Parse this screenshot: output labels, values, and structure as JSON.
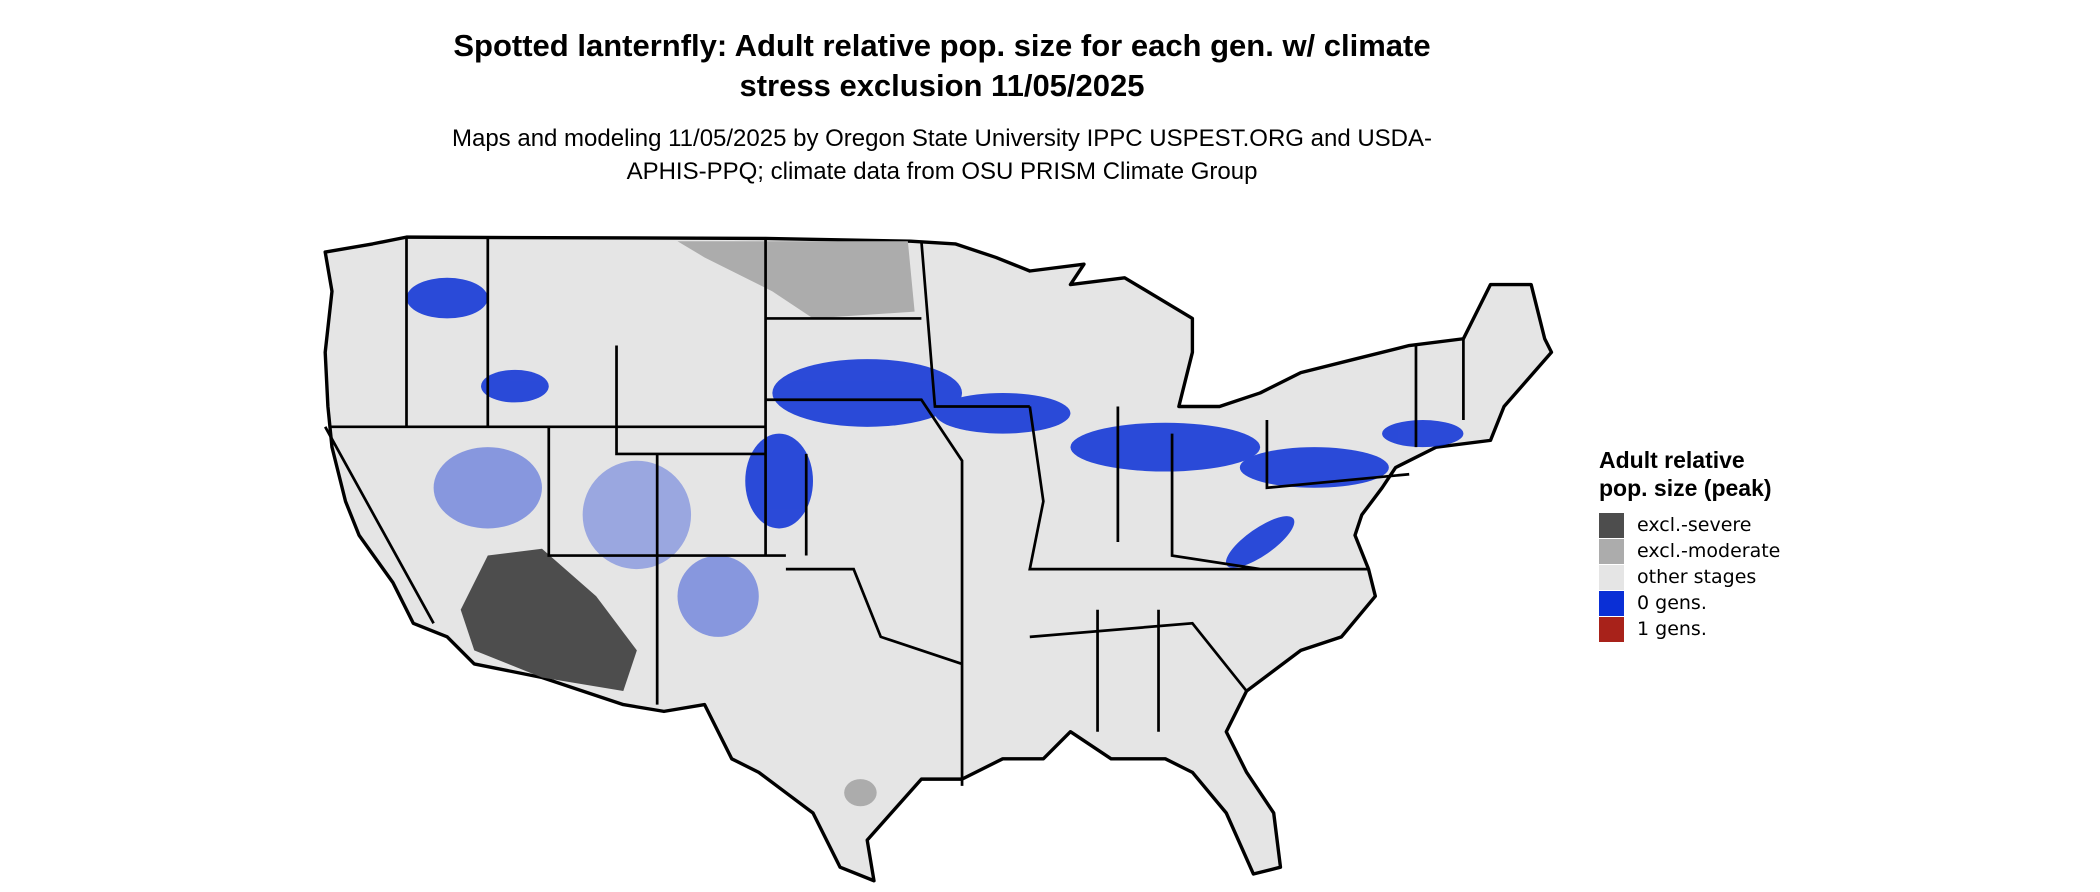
{
  "title": "Spotted lanternfly: Adult relative pop. size for each gen. w/ climate stress exclusion 11/05/2025",
  "subtitle": "Maps and modeling 11/05/2025 by Oregon State University IPPC USPEST.ORG and USDA-APHIS-PPQ; climate data from OSU PRISM Climate Group",
  "legend": {
    "title": "Adult relative pop. size (peak)",
    "items": [
      {
        "label": "excl.-severe",
        "color": "#4d4d4d"
      },
      {
        "label": "excl.-moderate",
        "color": "#acacac"
      },
      {
        "label": "other stages",
        "color": "#e5e5e5"
      },
      {
        "label": "0 gens.",
        "color": "#0a2fd6"
      },
      {
        "label": "1 gens.",
        "color": "#a8221a"
      }
    ]
  }
}
